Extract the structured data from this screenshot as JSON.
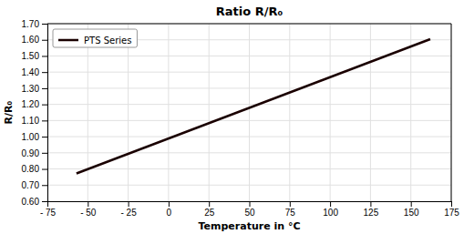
{
  "chart_data": {
    "type": "line",
    "title": "Ratio R/R₀",
    "xlabel": "Temperature in °C",
    "ylabel": "R/R₀",
    "x": [
      -57,
      162
    ],
    "series": [
      {
        "name": "PTS Series",
        "color": "#1a0000",
        "values": [
          0.772,
          1.604
        ]
      }
    ],
    "xlim": [
      -75,
      175
    ],
    "ylim": [
      0.6,
      1.7
    ],
    "xticks": [
      {
        "value": -75,
        "label": "- 75"
      },
      {
        "value": -50,
        "label": "- 50"
      },
      {
        "value": -25,
        "label": "- 25"
      },
      0,
      25,
      50,
      75,
      100,
      125,
      150,
      175
    ],
    "yticks": [
      {
        "value": 0.6,
        "label": "0.60"
      },
      {
        "value": 0.7,
        "label": "0.70"
      },
      {
        "value": 0.8,
        "label": "0.80"
      },
      {
        "value": 0.9,
        "label": "0.90"
      },
      {
        "value": 1.0,
        "label": "1.00"
      },
      {
        "value": 1.1,
        "label": "1.10"
      },
      {
        "value": 1.2,
        "label": "1.20"
      },
      {
        "value": 1.3,
        "label": "1.30"
      },
      {
        "value": 1.4,
        "label": "1.40"
      },
      {
        "value": 1.5,
        "label": "1.50"
      },
      {
        "value": 1.6,
        "label": "1.60"
      },
      {
        "value": 1.7,
        "label": "1.70"
      }
    ],
    "grid": true,
    "legend": "upper left"
  }
}
